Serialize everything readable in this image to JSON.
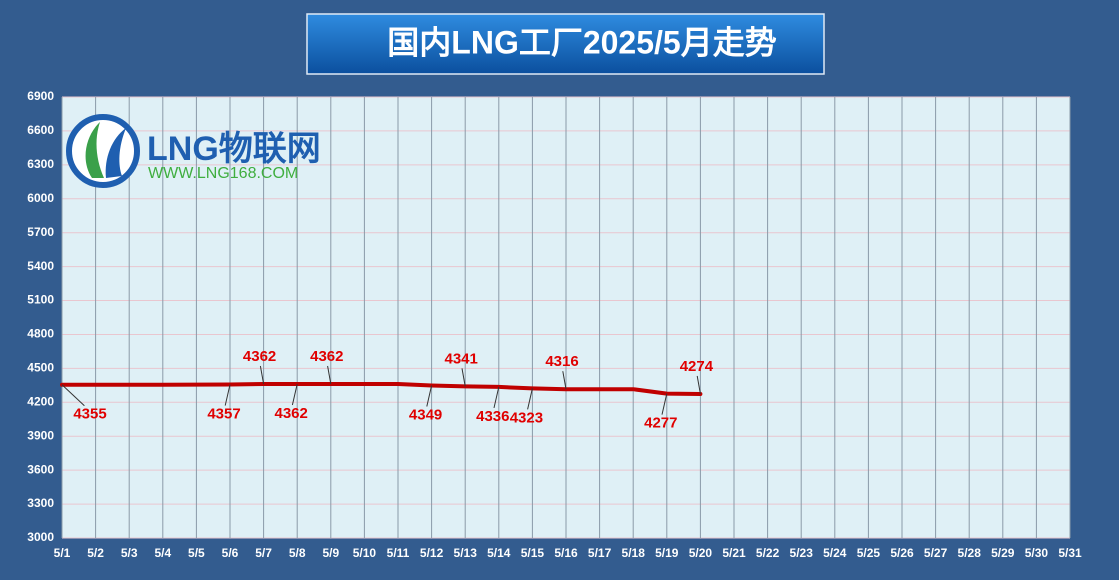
{
  "chart_data": {
    "type": "line",
    "title": "国内LNG工厂2025/5月走势",
    "logo": {
      "text": "LNG物联网",
      "url": "WWW.LNG168.COM"
    },
    "categories": [
      "5/1",
      "5/2",
      "5/3",
      "5/4",
      "5/5",
      "5/6",
      "5/7",
      "5/8",
      "5/9",
      "5/10",
      "5/11",
      "5/12",
      "5/13",
      "5/14",
      "5/15",
      "5/16",
      "5/17",
      "5/18",
      "5/19",
      "5/20",
      "5/21",
      "5/22",
      "5/23",
      "5/24",
      "5/25",
      "5/26",
      "5/27",
      "5/28",
      "5/29",
      "5/30",
      "5/31"
    ],
    "series": [
      {
        "name": "LNG",
        "color": "#c00000",
        "values": [
          4355,
          4355,
          4355,
          4355,
          4356,
          4357,
          4362,
          4362,
          4362,
          4362,
          4362,
          4349,
          4341,
          4336,
          4323,
          4316,
          4316,
          4316,
          4277,
          4274,
          null,
          null,
          null,
          null,
          null,
          null,
          null,
          null,
          null,
          null,
          null
        ],
        "value_labels": [
          "4355",
          null,
          null,
          null,
          null,
          "4357",
          "4362",
          "4362",
          "4362",
          null,
          null,
          "4349",
          "4341",
          "4336",
          "4323",
          "4316",
          null,
          null,
          "4277",
          "4274",
          null,
          null,
          null,
          null,
          null,
          null,
          null,
          null,
          null,
          null,
          null
        ]
      }
    ],
    "ylim": [
      3000,
      6900
    ],
    "yticks": [
      3000,
      3300,
      3600,
      3900,
      4200,
      4500,
      4800,
      5100,
      5400,
      5700,
      6000,
      6300,
      6600,
      6900
    ],
    "grid": true
  }
}
